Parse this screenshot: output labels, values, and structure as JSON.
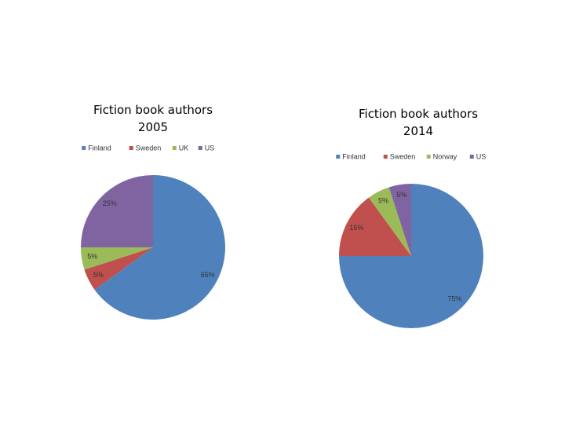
{
  "chart_data": [
    {
      "type": "pie",
      "title": "Fiction book authors 2005",
      "categories": [
        "Finland",
        "Sweden",
        "UK",
        "US"
      ],
      "values": [
        65,
        5,
        5,
        25
      ],
      "value_labels": [
        "65%",
        "5%",
        "5%",
        "25%"
      ],
      "colors": [
        "#4f81bd",
        "#c0504d",
        "#9bbb59",
        "#8064a2"
      ]
    },
    {
      "type": "pie",
      "title": "Fiction book authors 2014",
      "categories": [
        "Finland",
        "Sweden",
        "Norway",
        "US"
      ],
      "values": [
        75,
        15,
        5,
        5
      ],
      "value_labels": [
        "75%",
        "15%",
        "5%",
        "5%"
      ],
      "colors": [
        "#4f81bd",
        "#c0504d",
        "#9bbb59",
        "#8064a2"
      ]
    }
  ]
}
